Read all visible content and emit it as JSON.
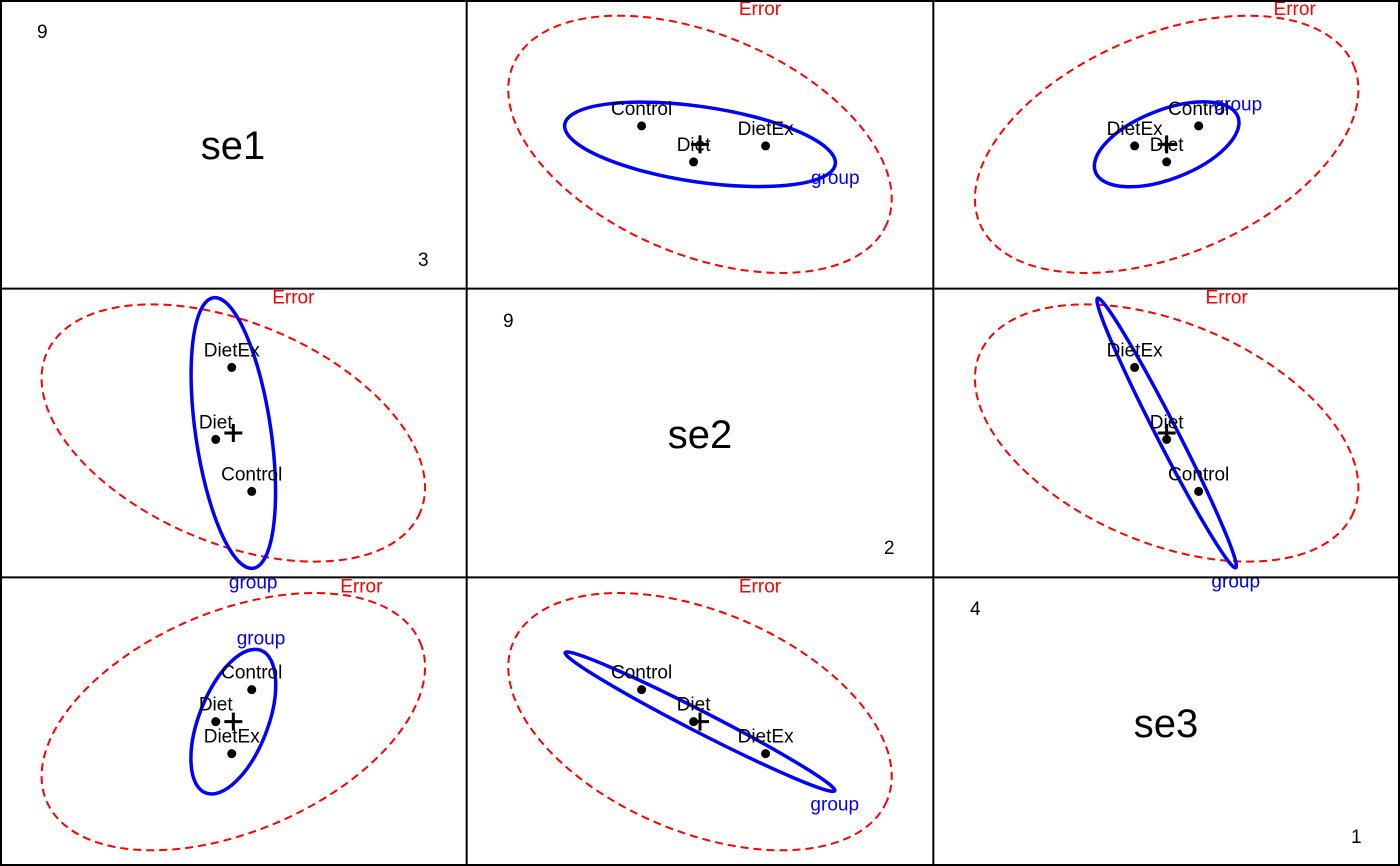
{
  "colors": {
    "hypothesis": "#0000ff",
    "error": "#ff0000",
    "points": "#000000",
    "frame": "#000000"
  },
  "chart_data": {
    "type": "scatter",
    "subtype": "HE-plot pairs matrix",
    "variables": [
      {
        "name": "se1",
        "range_min": "3",
        "range_max": "9"
      },
      {
        "name": "se2",
        "range_min": "2",
        "range_max": "9"
      },
      {
        "name": "se3",
        "range_min": "1",
        "range_max": "4"
      }
    ],
    "error_label": "Error",
    "hypothesis_label": "group",
    "groups": [
      "Control",
      "Diet",
      "DietEx"
    ],
    "group_means": [
      {
        "name": "Control",
        "se1": 6.05,
        "se2": 5.05,
        "se3": 2.6
      },
      {
        "name": "Diet",
        "se1": 5.6,
        "se2": 5.7,
        "se3": 2.2
      },
      {
        "name": "DietEx",
        "se1": 5.8,
        "se2": 6.6,
        "se3": 1.8
      }
    ],
    "grand_mean": {
      "se1": 5.82,
      "se2": 5.78,
      "se3": 2.2
    },
    "panels": [
      {
        "row": 0,
        "col": 1,
        "hyp_label_pos": "below",
        "points": [
          {
            "name": "DietEx",
            "x": 6.6,
            "y": 5.8
          },
          {
            "name": "Diet",
            "x": 5.7,
            "y": 5.6
          },
          {
            "name": "Control",
            "x": 5.05,
            "y": 6.05
          }
        ]
      },
      {
        "row": 0,
        "col": 2,
        "hyp_label_pos": "above",
        "points": [
          {
            "name": "Control",
            "x": 2.6,
            "y": 6.05
          },
          {
            "name": "Diet",
            "x": 2.2,
            "y": 5.6
          },
          {
            "name": "DietEx",
            "x": 1.8,
            "y": 5.8
          }
        ]
      },
      {
        "row": 1,
        "col": 0,
        "hyp_label_pos": "below",
        "points": [
          {
            "name": "Control",
            "x": 6.05,
            "y": 5.05
          },
          {
            "name": "Diet",
            "x": 5.6,
            "y": 5.7
          },
          {
            "name": "DietEx",
            "x": 5.8,
            "y": 6.6
          }
        ]
      },
      {
        "row": 1,
        "col": 2,
        "hyp_label_pos": "below",
        "points": [
          {
            "name": "Control",
            "x": 2.6,
            "y": 5.05
          },
          {
            "name": "Diet",
            "x": 2.2,
            "y": 5.7
          },
          {
            "name": "DietEx",
            "x": 1.8,
            "y": 6.6
          }
        ]
      },
      {
        "row": 2,
        "col": 0,
        "hyp_label_pos": "above",
        "points": [
          {
            "name": "Control",
            "x": 6.05,
            "y": 2.6
          },
          {
            "name": "Diet",
            "x": 5.6,
            "y": 2.2
          },
          {
            "name": "DietEx",
            "x": 5.8,
            "y": 1.8
          }
        ]
      },
      {
        "row": 2,
        "col": 1,
        "hyp_label_pos": "below",
        "points": [
          {
            "name": "Control",
            "x": 5.05,
            "y": 2.6
          },
          {
            "name": "Diet",
            "x": 5.7,
            "y": 2.2
          },
          {
            "name": "DietEx",
            "x": 6.6,
            "y": 1.8
          }
        ]
      }
    ]
  }
}
